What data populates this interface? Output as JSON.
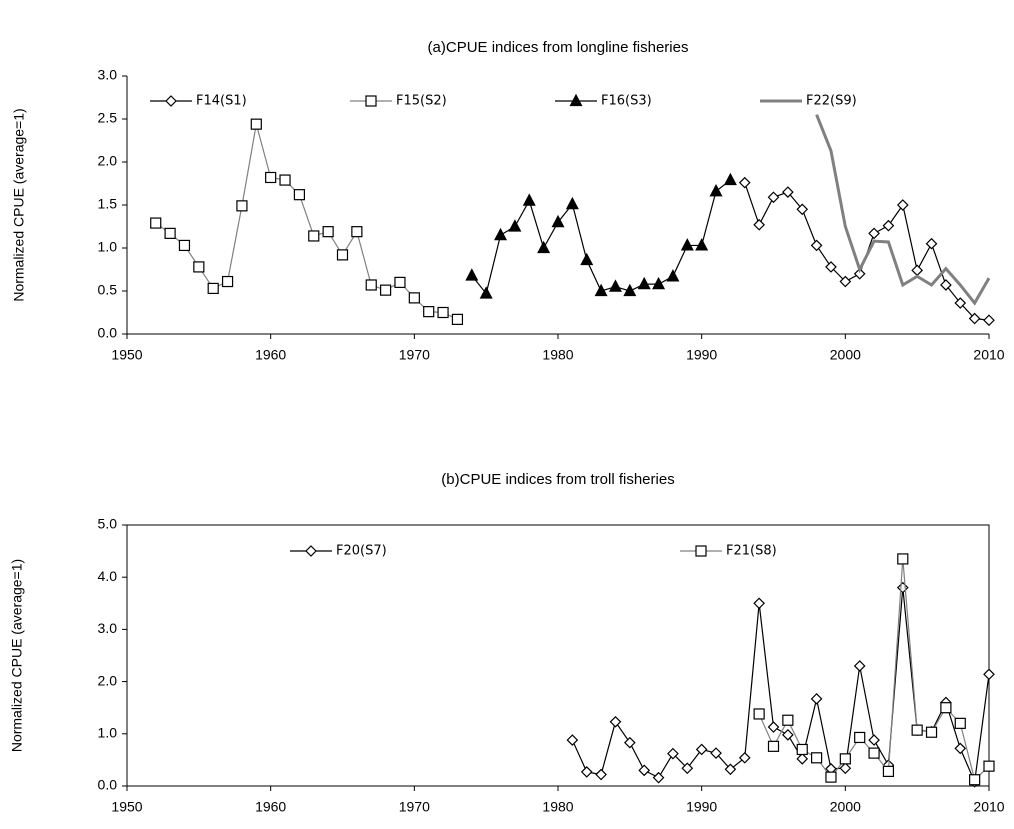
{
  "chart_data": [
    {
      "type": "line",
      "title": "(a)CPUE indices from longline fisheries",
      "ylabel": "Normalized CPUE (average=1)",
      "xlim": [
        1950,
        2010
      ],
      "xticks": [
        1950,
        1960,
        1970,
        1980,
        1990,
        2000,
        2010
      ],
      "ylim": [
        0,
        3
      ],
      "yticks": [
        {
          "value": 0,
          "label": "0.0"
        },
        0.5,
        {
          "value": 1,
          "label": "1.0"
        },
        1.5,
        {
          "value": 2,
          "label": "2.0"
        },
        2.5,
        {
          "value": 3,
          "label": "3.0"
        }
      ],
      "box": false,
      "series": [
        {
          "name": "F14(S1)",
          "color": "#000000",
          "marker": "diamond",
          "marker_fill": "#ffffff",
          "line_width": 1.2,
          "x": [
            1993,
            1994,
            1995,
            1996,
            1997,
            1998,
            1999,
            2000,
            2001,
            2002,
            2003,
            2004,
            2005,
            2006,
            2007,
            2008,
            2009,
            2010
          ],
          "values": [
            1.76,
            1.27,
            1.59,
            1.65,
            1.45,
            1.03,
            0.78,
            0.61,
            0.7,
            1.17,
            1.26,
            1.5,
            0.74,
            1.05,
            0.57,
            0.36,
            0.18,
            0.16
          ]
        },
        {
          "name": "F15(S2)",
          "color": "#808080",
          "marker": "square",
          "marker_fill": "#ffffff",
          "line_width": 1.2,
          "x": [
            1952,
            1953,
            1954,
            1955,
            1956,
            1957,
            1958,
            1959,
            1960,
            1961,
            1962,
            1963,
            1964,
            1965,
            1966,
            1967,
            1968,
            1969,
            1970,
            1971,
            1972,
            1973
          ],
          "values": [
            1.29,
            1.17,
            1.03,
            0.78,
            0.53,
            0.61,
            1.49,
            2.44,
            1.82,
            1.79,
            1.62,
            1.14,
            1.19,
            0.92,
            1.19,
            0.57,
            0.51,
            0.6,
            0.42,
            0.26,
            0.25,
            0.17
          ]
        },
        {
          "name": "F16(S3)",
          "color": "#000000",
          "marker": "triangle",
          "marker_fill": "#000000",
          "line_width": 1.2,
          "x": [
            1974,
            1975,
            1976,
            1977,
            1978,
            1979,
            1980,
            1981,
            1982,
            1983,
            1984,
            1985,
            1986,
            1987,
            1988,
            1989,
            1990,
            1991,
            1992
          ],
          "values": [
            0.68,
            0.47,
            1.15,
            1.25,
            1.55,
            1.0,
            1.3,
            1.51,
            0.86,
            0.5,
            0.55,
            0.5,
            0.58,
            0.58,
            0.67,
            1.03,
            1.03,
            1.66,
            1.79
          ]
        },
        {
          "name": "F22(S9)",
          "color": "#808080",
          "marker": "none",
          "marker_fill": "#808080",
          "line_width": 3,
          "x": [
            1998,
            1999,
            2000,
            2001,
            2002,
            2003,
            2004,
            2005,
            2006,
            2007,
            2008,
            2009,
            2010
          ],
          "values": [
            2.55,
            2.13,
            1.25,
            0.75,
            1.08,
            1.07,
            0.57,
            0.67,
            0.57,
            0.76,
            0.57,
            0.36,
            0.65
          ]
        }
      ]
    },
    {
      "type": "line",
      "title": "(b)CPUE indices from troll fisheries",
      "ylabel": "Normalized CPUE (average=1)",
      "xlim": [
        1950,
        2010
      ],
      "xticks": [
        1950,
        1960,
        1970,
        1980,
        1990,
        2000,
        2010
      ],
      "ylim": [
        0,
        5
      ],
      "yticks": [
        {
          "value": 0,
          "label": "0.0"
        },
        {
          "value": 1,
          "label": "1.0"
        },
        {
          "value": 2,
          "label": "2.0"
        },
        {
          "value": 3,
          "label": "3.0"
        },
        {
          "value": 4,
          "label": "4.0"
        },
        {
          "value": 5,
          "label": "5.0"
        }
      ],
      "box": true,
      "series": [
        {
          "name": "F20(S7)",
          "color": "#000000",
          "marker": "diamond",
          "marker_fill": "#ffffff",
          "line_width": 1.2,
          "x": [
            1981,
            1982,
            1983,
            1984,
            1985,
            1986,
            1987,
            1988,
            1989,
            1990,
            1991,
            1992,
            1993,
            1994,
            1995,
            1996,
            1997,
            1998,
            1999,
            2000,
            2001,
            2002,
            2003,
            2004,
            2005,
            2006,
            2007,
            2008,
            2009,
            2010
          ],
          "values": [
            0.88,
            0.27,
            0.22,
            1.23,
            0.83,
            0.3,
            0.16,
            0.62,
            0.34,
            0.7,
            0.63,
            0.32,
            0.54,
            3.5,
            1.13,
            0.98,
            0.52,
            1.67,
            0.33,
            0.34,
            2.3,
            0.88,
            0.4,
            3.8,
            1.07,
            1.04,
            1.6,
            0.72,
            0.08,
            2.14
          ]
        },
        {
          "name": "F21(S8)",
          "color": "#808080",
          "marker": "square",
          "marker_fill": "#ffffff",
          "line_width": 1.2,
          "x": [
            1994,
            1995,
            1996,
            1997,
            1998,
            1999,
            2000,
            2001,
            2002,
            2003,
            2004,
            2005,
            2006,
            2007,
            2008,
            2009,
            2010
          ],
          "values": [
            1.38,
            0.76,
            1.26,
            0.7,
            0.54,
            0.17,
            0.52,
            0.93,
            0.63,
            0.28,
            4.35,
            1.07,
            1.03,
            1.5,
            1.2,
            0.12,
            0.38
          ]
        }
      ]
    }
  ]
}
